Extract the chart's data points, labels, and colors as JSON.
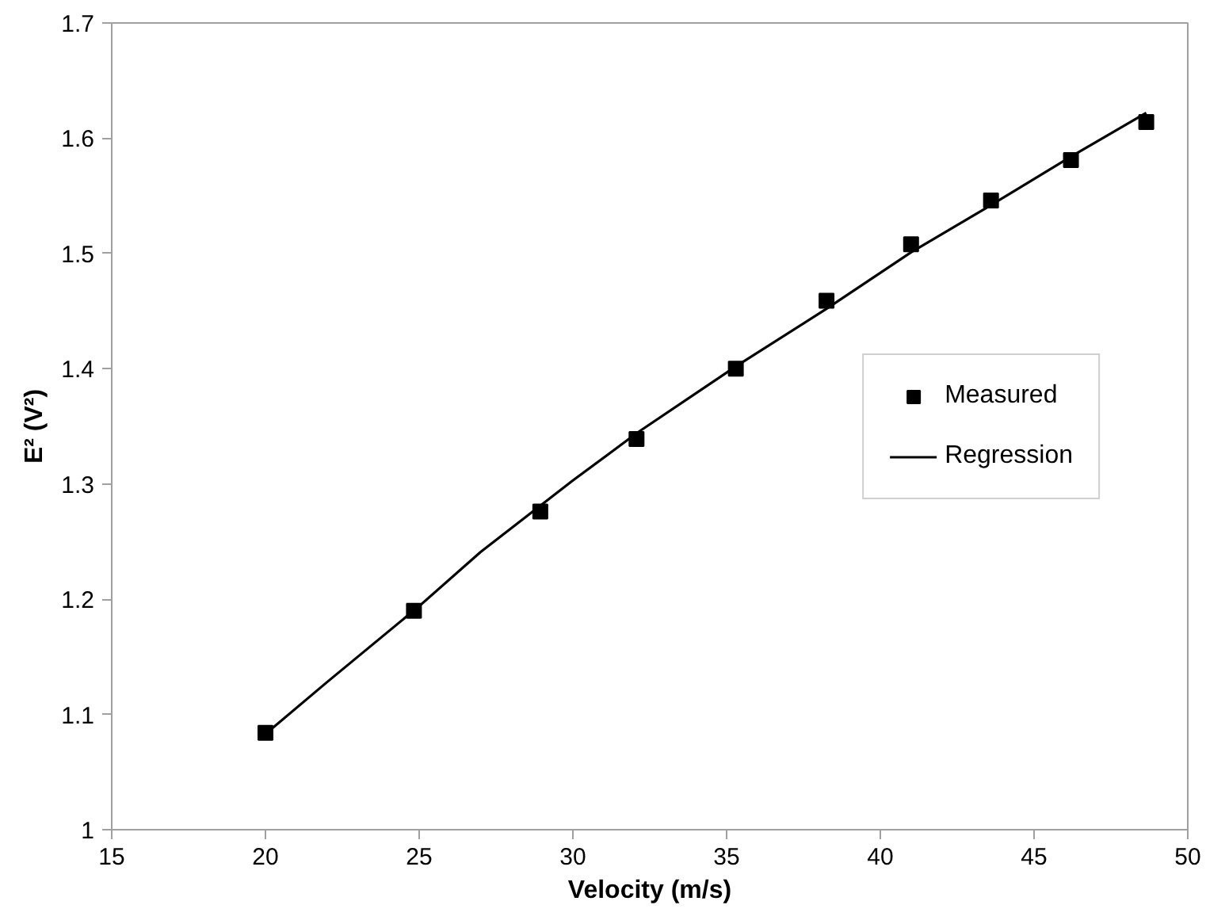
{
  "chart_data": {
    "type": "scatter",
    "xlabel": "Velocity (m/s)",
    "ylabel": "E² (V²)",
    "xlim": [
      15,
      50
    ],
    "ylim": [
      1,
      1.7
    ],
    "xticks": [
      15,
      20,
      25,
      30,
      35,
      40,
      45,
      50
    ],
    "yticks": [
      1,
      1.1,
      1.2,
      1.3,
      1.4,
      1.5,
      1.6,
      1.7
    ],
    "grid": false,
    "legend": "right",
    "marker": "square",
    "series": [
      {
        "name": "Measured",
        "color": "#000000",
        "x": [
          20.0,
          24.83,
          28.94,
          32.07,
          35.3,
          38.25,
          41.0,
          43.6,
          46.2,
          48.65
        ],
        "values": [
          1.084,
          1.19,
          1.276,
          1.339,
          1.4,
          1.459,
          1.508,
          1.546,
          1.581,
          1.614
        ]
      },
      {
        "name": "Regression",
        "type": "line",
        "color": "#000000",
        "marker": "none",
        "line_style": "solid",
        "x": [
          20,
          22,
          25,
          27,
          30,
          32.07,
          35.3,
          38.25,
          41,
          43.6,
          46.2,
          48.65
        ],
        "values": [
          1.083,
          1.128,
          1.194,
          1.241,
          1.303,
          1.344,
          1.402,
          1.452,
          1.501,
          1.542,
          1.584,
          1.622
        ]
      }
    ]
  }
}
